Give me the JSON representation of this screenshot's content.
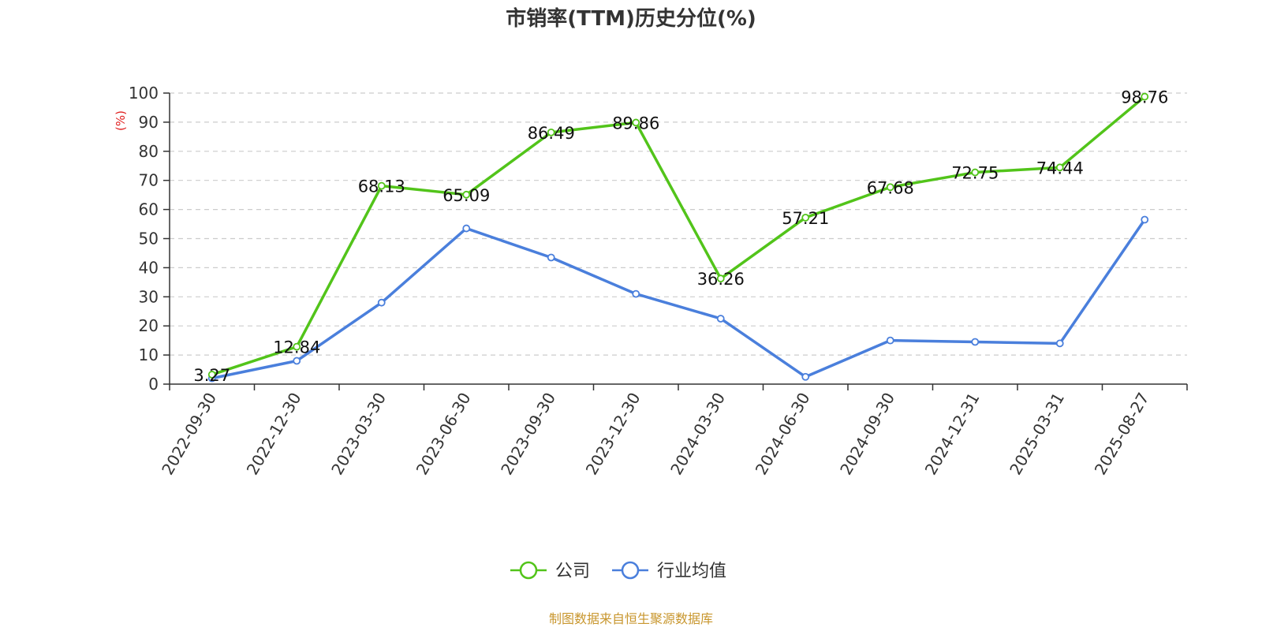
{
  "chart_data": {
    "type": "line",
    "title": "市销率(TTM)历史分位(%)",
    "ylabel": "(%)",
    "xlabel": "",
    "categories": [
      "2022-09-30",
      "2022-12-30",
      "2023-03-30",
      "2023-06-30",
      "2023-09-30",
      "2023-12-30",
      "2024-03-30",
      "2024-06-30",
      "2024-09-30",
      "2024-12-31",
      "2025-03-31",
      "2025-08-27"
    ],
    "ylim": [
      0,
      100
    ],
    "yticks": [
      0,
      10,
      20,
      30,
      40,
      50,
      60,
      70,
      80,
      90,
      100
    ],
    "grid": true,
    "legend_position": "bottom",
    "series": [
      {
        "name": "公司",
        "color": "#52c41a",
        "values": [
          3.27,
          12.84,
          68.13,
          65.09,
          86.49,
          89.86,
          36.26,
          57.21,
          67.68,
          72.75,
          74.44,
          98.76
        ],
        "labels": [
          "3.27",
          "12.84",
          "68.13",
          "65.09",
          "86.49",
          "89.86",
          "36.26",
          "57.21",
          "67.68",
          "72.75",
          "74.44",
          "98.76"
        ]
      },
      {
        "name": "行业均值",
        "color": "#4a7fdc",
        "values": [
          2,
          8,
          28,
          53.5,
          43.5,
          31,
          22.5,
          2.5,
          15,
          14.5,
          14,
          56.5
        ]
      }
    ]
  },
  "source": {
    "text": "制图数据来自恒生聚源数据库",
    "color": "#c8962d"
  },
  "ylabel_color": "#e02020"
}
